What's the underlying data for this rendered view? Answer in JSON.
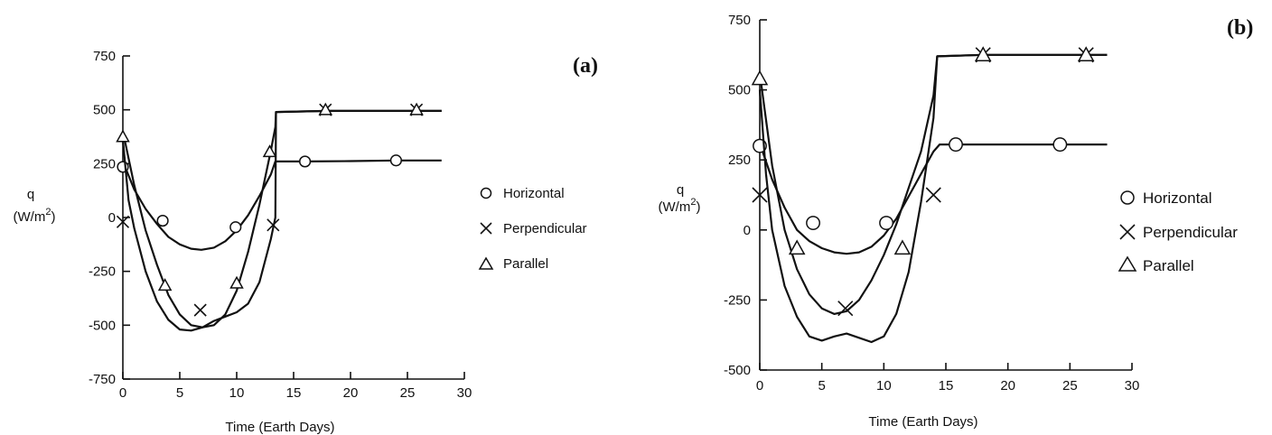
{
  "chart_data": [
    {
      "panel_label": "(a)",
      "type": "line",
      "xlabel": "Time (Earth Days)",
      "ylabel": "q",
      "ylabel_unit": "(W/m",
      "ylabel_unit_sup": "2",
      "ylabel_unit_close": ")",
      "xlim": [
        0,
        30
      ],
      "ylim": [
        -750,
        750
      ],
      "x_ticks": [
        0,
        5,
        10,
        15,
        20,
        25,
        30
      ],
      "y_ticks": [
        750,
        500,
        250,
        0,
        -250,
        -500,
        -750
      ],
      "x_tick_labels": [
        "0",
        "5",
        "10",
        "15",
        "20",
        "25",
        "30"
      ],
      "y_tick_labels": [
        "750",
        "500",
        "250",
        "0",
        "-250",
        "-500",
        "-750"
      ],
      "legend_placement": "right",
      "series": [
        {
          "name": "Horizontal",
          "marker": "circle",
          "curve": [
            [
              0,
              260
            ],
            [
              1,
              130
            ],
            [
              2,
              40
            ],
            [
              3,
              -30
            ],
            [
              4,
              -90
            ],
            [
              5,
              -125
            ],
            [
              6,
              -145
            ],
            [
              6.9,
              -150
            ],
            [
              8,
              -140
            ],
            [
              9,
              -110
            ],
            [
              10,
              -60
            ],
            [
              11,
              10
            ],
            [
              12,
              100
            ],
            [
              13,
              200
            ],
            [
              13.4,
              260
            ],
            [
              16,
              260
            ],
            [
              20,
              262
            ],
            [
              24,
              265
            ],
            [
              28,
              265
            ]
          ],
          "points": [
            [
              0,
              235
            ],
            [
              3.5,
              -15
            ],
            [
              9.9,
              -45
            ],
            [
              16,
              260
            ],
            [
              24,
              265
            ]
          ]
        },
        {
          "name": "Perpendicular",
          "marker": "cross",
          "curve": [
            [
              0,
              360
            ],
            [
              0.5,
              80
            ],
            [
              1,
              -50
            ],
            [
              2,
              -250
            ],
            [
              3,
              -390
            ],
            [
              4,
              -475
            ],
            [
              5,
              -520
            ],
            [
              6,
              -525
            ],
            [
              7,
              -510
            ],
            [
              8,
              -480
            ],
            [
              9,
              -460
            ],
            [
              10,
              -440
            ],
            [
              11,
              -400
            ],
            [
              12,
              -300
            ],
            [
              13,
              -100
            ],
            [
              13.4,
              0
            ],
            [
              13.45,
              490
            ],
            [
              18,
              495
            ],
            [
              22,
              495
            ],
            [
              28,
              495
            ]
          ],
          "points": [
            [
              0,
              -20
            ],
            [
              6.8,
              -430
            ],
            [
              13.2,
              -35
            ],
            [
              17.8,
              500
            ],
            [
              25.8,
              500
            ]
          ]
        },
        {
          "name": "Parallel",
          "marker": "triangle",
          "curve": [
            [
              0,
              400
            ],
            [
              1,
              150
            ],
            [
              2,
              -60
            ],
            [
              3,
              -220
            ],
            [
              4,
              -360
            ],
            [
              5,
              -450
            ],
            [
              6,
              -500
            ],
            [
              7,
              -510
            ],
            [
              8,
              -500
            ],
            [
              9,
              -450
            ],
            [
              10,
              -340
            ],
            [
              11,
              -160
            ],
            [
              12,
              60
            ],
            [
              13,
              310
            ],
            [
              13.4,
              420
            ],
            [
              13.45,
              490
            ],
            [
              18,
              495
            ],
            [
              28,
              495
            ]
          ],
          "points": [
            [
              0,
              375
            ],
            [
              3.7,
              -315
            ],
            [
              10,
              -305
            ],
            [
              12.9,
              305
            ],
            [
              17.8,
              500
            ],
            [
              25.8,
              500
            ]
          ]
        }
      ]
    },
    {
      "panel_label": "(b)",
      "type": "line",
      "xlabel": "Time (Earth Days)",
      "ylabel": "q",
      "ylabel_unit": "(W/m",
      "ylabel_unit_sup": "2",
      "ylabel_unit_close": ")",
      "xlim": [
        0,
        30
      ],
      "ylim": [
        -500,
        750
      ],
      "x_ticks": [
        0,
        5,
        10,
        15,
        20,
        25,
        30
      ],
      "y_ticks": [
        750,
        500,
        250,
        0,
        -250,
        -500
      ],
      "x_tick_labels": [
        "0",
        "5",
        "10",
        "15",
        "20",
        "25",
        "30"
      ],
      "y_tick_labels": [
        "750",
        "500",
        "250",
        "0",
        "-250",
        "-500"
      ],
      "legend_placement": "right",
      "series": [
        {
          "name": "Horizontal",
          "marker": "circle",
          "curve": [
            [
              0,
              310
            ],
            [
              1,
              180
            ],
            [
              2,
              80
            ],
            [
              3,
              0
            ],
            [
              4,
              -40
            ],
            [
              5,
              -65
            ],
            [
              6,
              -80
            ],
            [
              7,
              -85
            ],
            [
              8,
              -80
            ],
            [
              9,
              -60
            ],
            [
              10,
              -20
            ],
            [
              11,
              40
            ],
            [
              12,
              120
            ],
            [
              13,
              200
            ],
            [
              14,
              280
            ],
            [
              14.5,
              305
            ],
            [
              16,
              305
            ],
            [
              24,
              305
            ],
            [
              28,
              305
            ]
          ],
          "points": [
            [
              0,
              300
            ],
            [
              4.3,
              25
            ],
            [
              10.2,
              25
            ],
            [
              15.8,
              305
            ],
            [
              24.2,
              305
            ]
          ]
        },
        {
          "name": "Perpendicular",
          "marker": "cross",
          "curve": [
            [
              0,
              500
            ],
            [
              0.5,
              200
            ],
            [
              1,
              0
            ],
            [
              2,
              -200
            ],
            [
              3,
              -310
            ],
            [
              4,
              -380
            ],
            [
              5,
              -395
            ],
            [
              6,
              -380
            ],
            [
              7,
              -370
            ],
            [
              8,
              -385
            ],
            [
              9,
              -400
            ],
            [
              10,
              -380
            ],
            [
              11,
              -300
            ],
            [
              12,
              -150
            ],
            [
              13,
              100
            ],
            [
              14,
              400
            ],
            [
              14.3,
              620
            ],
            [
              18,
              625
            ],
            [
              28,
              625
            ]
          ],
          "points": [
            [
              0,
              125
            ],
            [
              6.9,
              -280
            ],
            [
              14,
              125
            ],
            [
              18,
              625
            ],
            [
              26.3,
              625
            ]
          ]
        },
        {
          "name": "Parallel",
          "marker": "triangle",
          "curve": [
            [
              0,
              560
            ],
            [
              1,
              230
            ],
            [
              2,
              0
            ],
            [
              3,
              -140
            ],
            [
              4,
              -230
            ],
            [
              5,
              -280
            ],
            [
              6,
              -300
            ],
            [
              7,
              -290
            ],
            [
              8,
              -250
            ],
            [
              9,
              -180
            ],
            [
              10,
              -90
            ],
            [
              11,
              20
            ],
            [
              12,
              150
            ],
            [
              13,
              280
            ],
            [
              14,
              480
            ],
            [
              14.3,
              620
            ],
            [
              18,
              625
            ],
            [
              28,
              625
            ]
          ],
          "points": [
            [
              0,
              540
            ],
            [
              3,
              -65
            ],
            [
              11.5,
              -65
            ],
            [
              18,
              625
            ],
            [
              26.3,
              625
            ]
          ]
        }
      ]
    }
  ]
}
